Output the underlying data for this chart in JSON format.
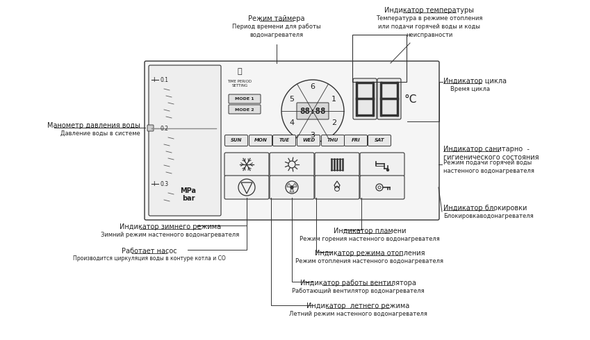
{
  "bg_color": "#ffffff",
  "line_color": "#333333",
  "text_color": "#222222",
  "annotations": {
    "timer_label": "Режим таймера",
    "timer_desc": "Период времени для работы\nводонагревателя",
    "temp_label": "Индикатор температуры",
    "temp_desc": "Температура в режиме отопления\nили подачи горячей воды и коды\nнеисправности",
    "cycle_label": "Индикатор цикла",
    "cycle_desc": "Время цикла",
    "manometer_label": "Манометр давления воды",
    "manometer_desc": "Давление воды в системе",
    "sanitary_label": "Индикатор санитарно  -\nгигиенического состояния",
    "sanitary_desc": "Режим подачи горячей воды\nнастенного водонагревателя",
    "block_label": "Индикатор блокировки",
    "block_desc": "Блокировкаводонагревателя",
    "winter_label": "Индикатор зимнего режима",
    "winter_desc": "Зимний режим настенного водонагревателя",
    "pump_label": "Работает насос",
    "pump_desc": "Производится циркуляция воды в контуре котла и СО",
    "flame_label": "Индикатор пламени",
    "flame_desc": "Режим горения настенного водонагревателя",
    "heat_label": "Индикатор режима отопления",
    "heat_desc": "Режим отопления настенного водонагревателя",
    "fan_label": "Индикатор работы вентилятора",
    "fan_desc": "Работающий вентилятор водонагревателя",
    "summer_label": "Индикатор  летнего режима",
    "summer_desc": "Летний режим настенного водонагревателя"
  }
}
